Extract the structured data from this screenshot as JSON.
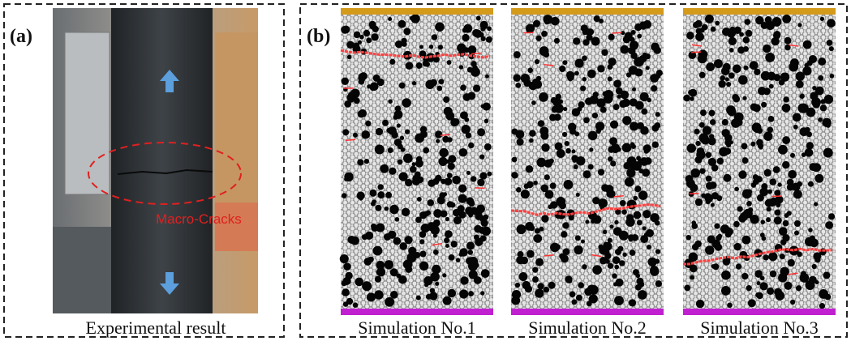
{
  "panel_a": {
    "label": "(a)",
    "annotation": "Macro-Cracks",
    "caption": "Experimental result"
  },
  "panel_b": {
    "label": "(b)",
    "captions": [
      "Simulation No.1",
      "Simulation No.2",
      "Simulation No.3"
    ]
  }
}
